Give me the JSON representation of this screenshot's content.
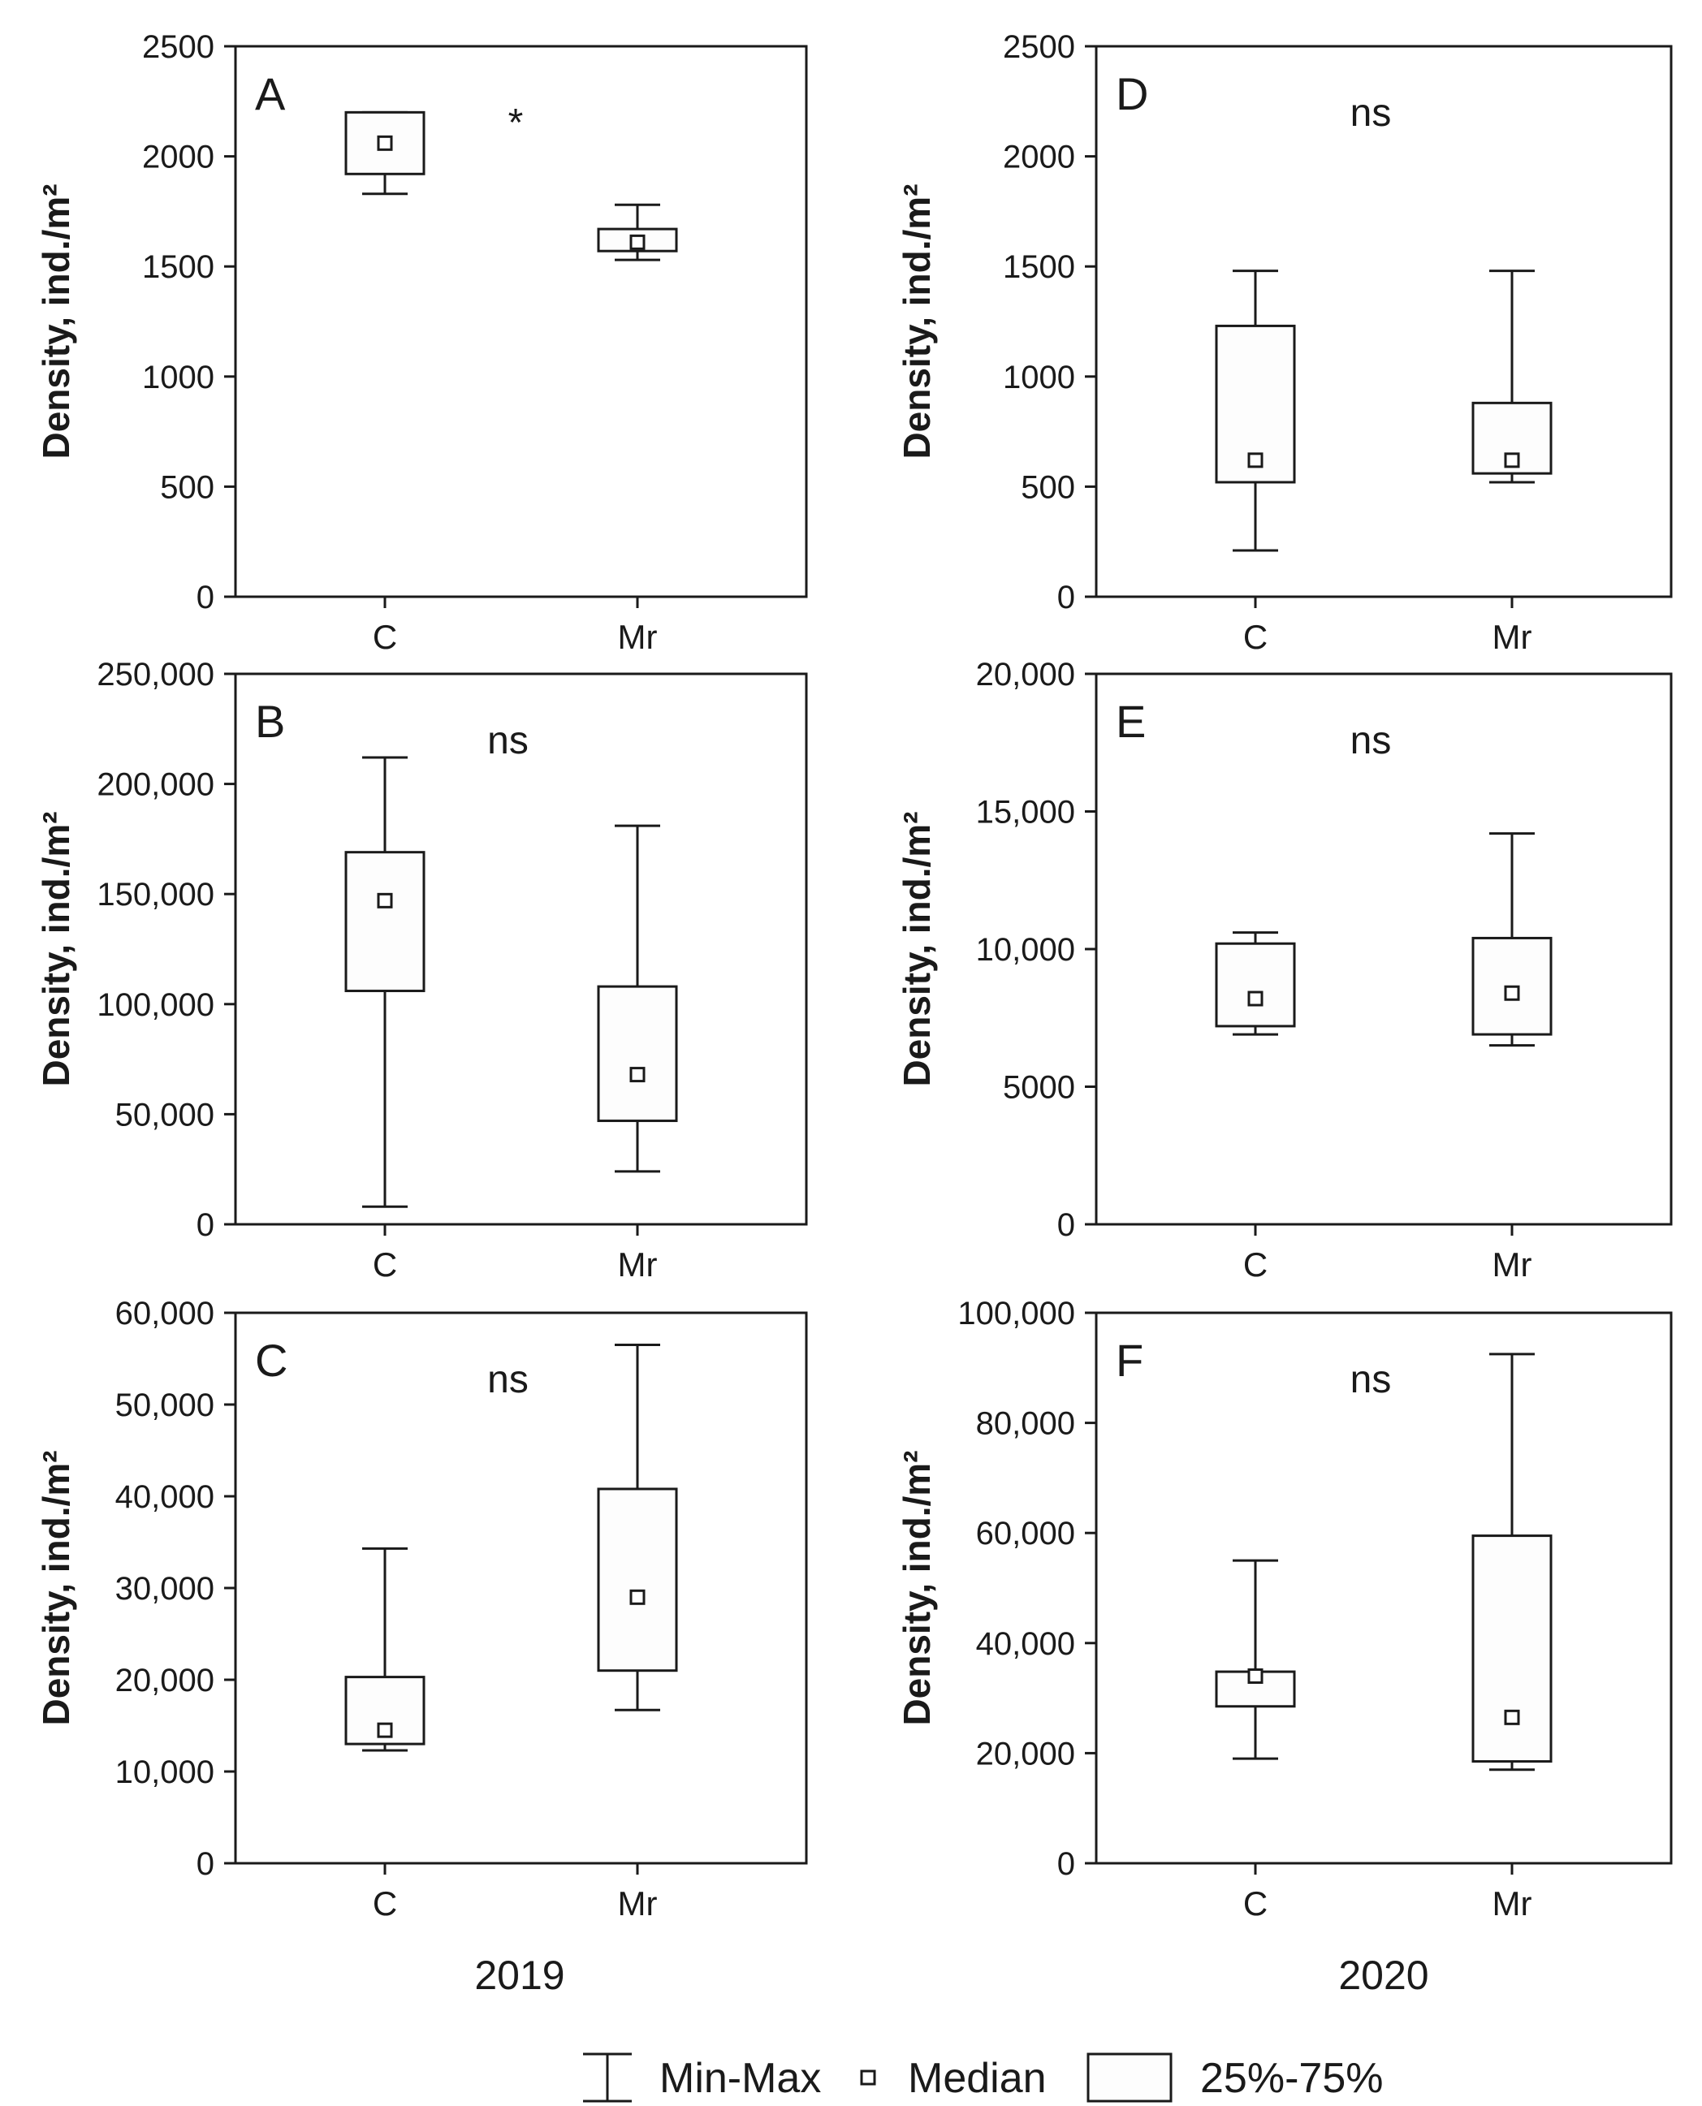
{
  "chart_data": [
    {
      "id": "A",
      "type": "box",
      "letter": "A",
      "significance": "*",
      "ylabel": "Density, ind./m²",
      "ylim": [
        0,
        2500
      ],
      "yticks": [
        0,
        500,
        1000,
        1500,
        2000,
        2500
      ],
      "ytick_labels": [
        "0",
        "500",
        "1000",
        "1500",
        "2000",
        "2500"
      ],
      "categories": [
        "C",
        "Mr"
      ],
      "series": [
        {
          "category": "C",
          "min": 1830,
          "q1": 1920,
          "median": 2060,
          "q3": 2200,
          "max": 2200
        },
        {
          "category": "Mr",
          "min": 1530,
          "q1": 1570,
          "median": 1610,
          "q3": 1670,
          "max": 1780
        }
      ]
    },
    {
      "id": "B",
      "type": "box",
      "letter": "B",
      "significance": "ns",
      "ylabel": "Density, ind./m²",
      "ylim": [
        0,
        250000
      ],
      "yticks": [
        0,
        50000,
        100000,
        150000,
        200000,
        250000
      ],
      "ytick_labels": [
        "0",
        "50,000",
        "100,000",
        "150,000",
        "200,000",
        "250,000"
      ],
      "categories": [
        "C",
        "Mr"
      ],
      "series": [
        {
          "category": "C",
          "min": 8000,
          "q1": 106000,
          "median": 147000,
          "q3": 169000,
          "max": 212000
        },
        {
          "category": "Mr",
          "min": 24000,
          "q1": 47000,
          "median": 68000,
          "q3": 108000,
          "max": 181000
        }
      ]
    },
    {
      "id": "C",
      "type": "box",
      "letter": "C",
      "significance": "ns",
      "ylabel": "Density, ind./m²",
      "ylim": [
        0,
        60000
      ],
      "yticks": [
        0,
        10000,
        20000,
        30000,
        40000,
        50000,
        60000
      ],
      "ytick_labels": [
        "0",
        "10,000",
        "20,000",
        "30,000",
        "40,000",
        "50,000",
        "60,000"
      ],
      "categories": [
        "C",
        "Mr"
      ],
      "series": [
        {
          "category": "C",
          "min": 12300,
          "q1": 13000,
          "median": 14500,
          "q3": 20300,
          "max": 34300
        },
        {
          "category": "Mr",
          "min": 16700,
          "q1": 21000,
          "median": 29000,
          "q3": 40800,
          "max": 56500
        }
      ]
    },
    {
      "id": "D",
      "type": "box",
      "letter": "D",
      "significance": "ns",
      "ylabel": "Density, ind./m²",
      "ylim": [
        0,
        2500
      ],
      "yticks": [
        0,
        500,
        1000,
        1500,
        2000,
        2500
      ],
      "ytick_labels": [
        "0",
        "500",
        "1000",
        "1500",
        "2000",
        "2500"
      ],
      "categories": [
        "C",
        "Mr"
      ],
      "series": [
        {
          "category": "C",
          "min": 210,
          "q1": 520,
          "median": 620,
          "q3": 1230,
          "max": 1480
        },
        {
          "category": "Mr",
          "min": 520,
          "q1": 560,
          "median": 620,
          "q3": 880,
          "max": 1480
        }
      ]
    },
    {
      "id": "E",
      "type": "box",
      "letter": "E",
      "significance": "ns",
      "ylabel": "Density, ind./m²",
      "ylim": [
        0,
        20000
      ],
      "yticks": [
        0,
        5000,
        10000,
        15000,
        20000
      ],
      "ytick_labels": [
        "0",
        "5000",
        "10,000",
        "15,000",
        "20,000"
      ],
      "categories": [
        "C",
        "Mr"
      ],
      "series": [
        {
          "category": "C",
          "min": 6900,
          "q1": 7200,
          "median": 8200,
          "q3": 10200,
          "max": 10600
        },
        {
          "category": "Mr",
          "min": 6500,
          "q1": 6900,
          "median": 8400,
          "q3": 10400,
          "max": 14200
        }
      ]
    },
    {
      "id": "F",
      "type": "box",
      "letter": "F",
      "significance": "ns",
      "ylabel": "Density, ind./m²",
      "ylim": [
        0,
        100000
      ],
      "yticks": [
        0,
        20000,
        40000,
        60000,
        80000,
        100000
      ],
      "ytick_labels": [
        "0",
        "20,000",
        "40,000",
        "60,000",
        "80,000",
        "100,000"
      ],
      "categories": [
        "C",
        "Mr"
      ],
      "series": [
        {
          "category": "C",
          "min": 19000,
          "q1": 28500,
          "median": 34000,
          "q3": 34800,
          "max": 55000
        },
        {
          "category": "Mr",
          "min": 17000,
          "q1": 18500,
          "median": 26500,
          "q3": 59500,
          "max": 92500
        }
      ]
    }
  ],
  "column_labels": [
    "2019",
    "2020"
  ],
  "legend": {
    "minmax": "Min-Max",
    "median": "Median",
    "box": "25%-75%"
  }
}
